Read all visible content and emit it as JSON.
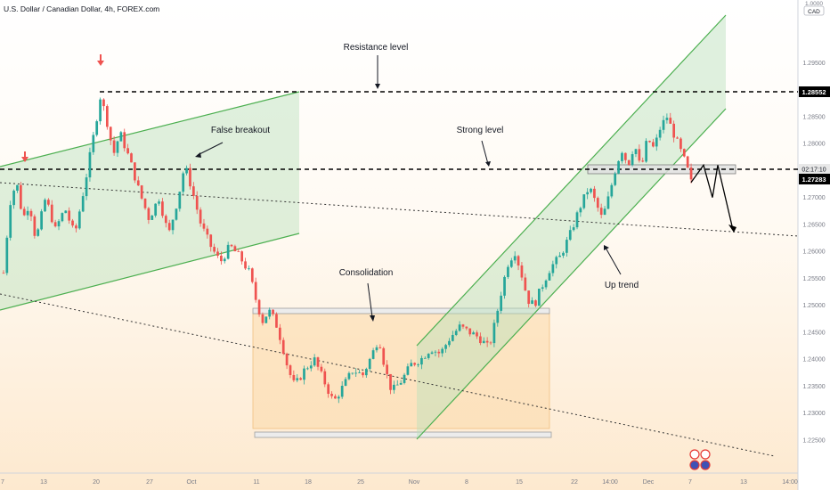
{
  "header": {
    "symbol_title": "U.S. Dollar / Canadian Dollar, 4h, FOREX.com"
  },
  "price_scale": {
    "unit_label": "CAD",
    "multiplier_label": "1.0000"
  },
  "colors": {
    "up_candle": "#26a69a",
    "down_candle": "#ef5350",
    "channel": "#4caf50",
    "channel_fill": "#c8e6c9",
    "consolidation_fill": "#ffe0b2",
    "level_line": "#000000",
    "bg_top": "#ffffff",
    "bg_bottom": "#fde9cf",
    "marker_arrow": "#ef5350"
  },
  "chart_data": {
    "type": "candlestick",
    "title": "U.S. Dollar / Canadian Dollar, 4h, FOREX.com",
    "ylim": [
      1.2253,
      1.3007
    ],
    "y_ticks": [
      "1.29500",
      "1.29000",
      "1.28500",
      "1.28000",
      "1.27500",
      "1.27000",
      "1.26500",
      "1.26000",
      "1.25500",
      "1.25000",
      "1.24500",
      "1.24000",
      "1.23500",
      "1.23000",
      "1.22500"
    ],
    "x_ticks": [
      "7",
      "13",
      "20",
      "27",
      "Oct",
      "11",
      "18",
      "25",
      "Nov",
      "8",
      "15",
      "22",
      "14:00",
      "Dec",
      "7",
      "13",
      "14:00"
    ],
    "price_labels": {
      "resistance": "1.28552",
      "countdown": "02:17:10",
      "current": "1.27283"
    },
    "levels": {
      "resistance": 1.28552,
      "strong_level": 1.27283
    },
    "annotations": [
      "Resistance level",
      "False breakout",
      "Strong level",
      "Consolidation",
      "Up trend"
    ],
    "path_points": [
      {
        "t": 0,
        "p": 1.256
      },
      {
        "t": 4,
        "p": 1.269
      },
      {
        "t": 8,
        "p": 1.273
      },
      {
        "t": 12,
        "p": 1.266
      },
      {
        "t": 16,
        "p": 1.269
      },
      {
        "t": 20,
        "p": 1.262
      },
      {
        "t": 26,
        "p": 1.27
      },
      {
        "t": 32,
        "p": 1.264
      },
      {
        "t": 38,
        "p": 1.268
      },
      {
        "t": 44,
        "p": 1.263
      },
      {
        "t": 50,
        "p": 1.272
      },
      {
        "t": 56,
        "p": 1.282
      },
      {
        "t": 60,
        "p": 1.289
      },
      {
        "t": 64,
        "p": 1.284
      },
      {
        "t": 68,
        "p": 1.278
      },
      {
        "t": 72,
        "p": 1.282
      },
      {
        "t": 78,
        "p": 1.277
      },
      {
        "t": 84,
        "p": 1.271
      },
      {
        "t": 90,
        "p": 1.266
      },
      {
        "t": 96,
        "p": 1.27
      },
      {
        "t": 102,
        "p": 1.263
      },
      {
        "t": 108,
        "p": 1.27
      },
      {
        "t": 112,
        "p": 1.276
      },
      {
        "t": 116,
        "p": 1.272
      },
      {
        "t": 122,
        "p": 1.265
      },
      {
        "t": 128,
        "p": 1.261
      },
      {
        "t": 134,
        "p": 1.258
      },
      {
        "t": 140,
        "p": 1.261
      },
      {
        "t": 146,
        "p": 1.259
      },
      {
        "t": 152,
        "p": 1.256
      },
      {
        "t": 156,
        "p": 1.251
      },
      {
        "t": 160,
        "p": 1.247
      },
      {
        "t": 164,
        "p": 1.249
      },
      {
        "t": 168,
        "p": 1.247
      },
      {
        "t": 172,
        "p": 1.243
      },
      {
        "t": 176,
        "p": 1.238
      },
      {
        "t": 180,
        "p": 1.235
      },
      {
        "t": 186,
        "p": 1.238
      },
      {
        "t": 192,
        "p": 1.24
      },
      {
        "t": 198,
        "p": 1.236
      },
      {
        "t": 204,
        "p": 1.232
      },
      {
        "t": 210,
        "p": 1.235
      },
      {
        "t": 216,
        "p": 1.238
      },
      {
        "t": 222,
        "p": 1.237
      },
      {
        "t": 228,
        "p": 1.241
      },
      {
        "t": 232,
        "p": 1.244
      },
      {
        "t": 236,
        "p": 1.238
      },
      {
        "t": 240,
        "p": 1.234
      },
      {
        "t": 246,
        "p": 1.236
      },
      {
        "t": 252,
        "p": 1.239
      },
      {
        "t": 258,
        "p": 1.24
      },
      {
        "t": 264,
        "p": 1.242
      },
      {
        "t": 270,
        "p": 1.241
      },
      {
        "t": 276,
        "p": 1.244
      },
      {
        "t": 282,
        "p": 1.246
      },
      {
        "t": 288,
        "p": 1.245
      },
      {
        "t": 294,
        "p": 1.244
      },
      {
        "t": 300,
        "p": 1.242
      },
      {
        "t": 304,
        "p": 1.247
      },
      {
        "t": 308,
        "p": 1.253
      },
      {
        "t": 312,
        "p": 1.258
      },
      {
        "t": 316,
        "p": 1.26
      },
      {
        "t": 320,
        "p": 1.256
      },
      {
        "t": 324,
        "p": 1.251
      },
      {
        "t": 328,
        "p": 1.25
      },
      {
        "t": 332,
        "p": 1.253
      },
      {
        "t": 338,
        "p": 1.257
      },
      {
        "t": 344,
        "p": 1.259
      },
      {
        "t": 350,
        "p": 1.263
      },
      {
        "t": 356,
        "p": 1.268
      },
      {
        "t": 362,
        "p": 1.272
      },
      {
        "t": 366,
        "p": 1.269
      },
      {
        "t": 370,
        "p": 1.266
      },
      {
        "t": 374,
        "p": 1.27
      },
      {
        "t": 378,
        "p": 1.275
      },
      {
        "t": 382,
        "p": 1.279
      },
      {
        "t": 386,
        "p": 1.276
      },
      {
        "t": 390,
        "p": 1.28
      },
      {
        "t": 394,
        "p": 1.275
      },
      {
        "t": 398,
        "p": 1.281
      },
      {
        "t": 402,
        "p": 1.279
      },
      {
        "t": 406,
        "p": 1.283
      },
      {
        "t": 410,
        "p": 1.285
      },
      {
        "t": 414,
        "p": 1.282
      },
      {
        "t": 418,
        "p": 1.279
      },
      {
        "t": 422,
        "p": 1.276
      },
      {
        "t": 425,
        "p": 1.2728
      }
    ],
    "projection": [
      1.2728,
      1.276,
      1.27,
      1.276,
      1.264
    ]
  }
}
